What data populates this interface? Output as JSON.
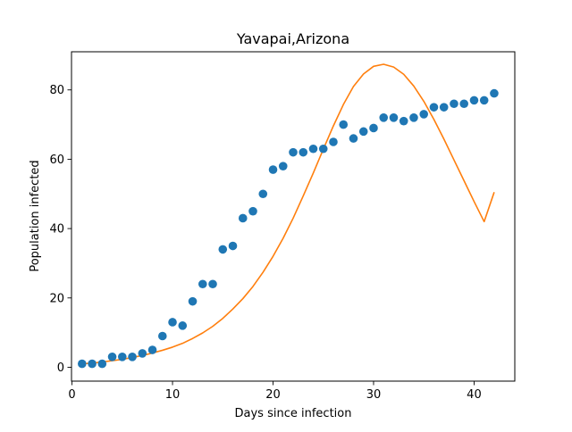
{
  "chart_data": {
    "type": "scatter",
    "title": "Yavapai,Arizona",
    "xlabel": "Days since infection",
    "ylabel": "Population infected",
    "xlim": [
      -0.05,
      44.05
    ],
    "ylim": [
      -4.0,
      91.0
    ],
    "x_ticks": [
      0,
      10,
      20,
      30,
      40
    ],
    "y_ticks": [
      0,
      20,
      40,
      60,
      80
    ],
    "grid": false,
    "series": [
      {
        "kind": "scatter",
        "color": "#1f77b4",
        "x": [
          1,
          2,
          3,
          4,
          5,
          6,
          7,
          8,
          9,
          10,
          11,
          12,
          13,
          14,
          15,
          16,
          17,
          18,
          19,
          20,
          21,
          22,
          23,
          24,
          25,
          26,
          27,
          28,
          29,
          30,
          31,
          32,
          33,
          34,
          35,
          36,
          37,
          38,
          39,
          40,
          41,
          42
        ],
        "y": [
          1,
          1,
          1,
          3,
          3,
          3,
          4,
          5,
          9,
          13,
          12,
          19,
          24,
          24,
          34,
          35,
          43,
          45,
          50,
          57,
          58,
          62,
          62,
          63,
          63,
          65,
          70,
          66,
          68,
          69,
          72,
          72,
          71,
          72,
          73,
          75,
          75,
          76,
          76,
          77,
          77,
          79
        ]
      },
      {
        "kind": "line",
        "color": "#ff7f0e",
        "x": [
          1,
          2,
          3,
          4,
          5,
          6,
          7,
          8,
          9,
          10,
          11,
          12,
          13,
          14,
          15,
          16,
          17,
          18,
          19,
          20,
          21,
          22,
          23,
          24,
          25,
          26,
          27,
          28,
          29,
          30,
          31,
          32,
          33,
          34,
          35,
          36,
          37,
          38,
          39,
          40,
          41,
          42
        ],
        "y": [
          1.0,
          1.2,
          1.5,
          1.9,
          2.3,
          2.8,
          3.4,
          4.1,
          4.9,
          5.8,
          6.9,
          8.3,
          9.9,
          11.8,
          14.1,
          16.8,
          19.8,
          23.3,
          27.4,
          32.0,
          37.2,
          43.0,
          49.4,
          56.0,
          62.9,
          69.6,
          75.8,
          81.0,
          84.6,
          86.8,
          87.4,
          86.6,
          84.5,
          81.1,
          76.7,
          71.5,
          65.8,
          59.8,
          53.8,
          47.8,
          42.0,
          50.5
        ]
      }
    ]
  }
}
